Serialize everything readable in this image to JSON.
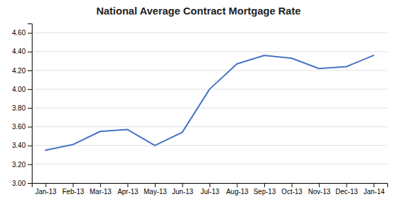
{
  "chart_data": {
    "type": "line",
    "title": "National Average Contract Mortgage Rate",
    "categories": [
      "Jan-13",
      "Feb-13",
      "Mar-13",
      "Apr-13",
      "May-13",
      "Jun-13",
      "Jul-13",
      "Aug-13",
      "Sep-13",
      "Oct-13",
      "Nov-13",
      "Dec-13",
      "Jan-14"
    ],
    "values": [
      3.35,
      3.41,
      3.55,
      3.57,
      3.4,
      3.54,
      4.0,
      4.27,
      4.36,
      4.33,
      4.22,
      4.24,
      4.36
    ],
    "color": "#4472C4",
    "ylim": [
      3.0,
      4.7
    ],
    "yticks": [
      {
        "value": 3.0,
        "label": "3.00"
      },
      {
        "value": 3.2,
        "label": "3.20"
      },
      {
        "value": 3.4,
        "label": "3.40"
      },
      {
        "value": 3.6,
        "label": "3.60"
      },
      {
        "value": 3.8,
        "label": "3.80"
      },
      {
        "value": 4.0,
        "label": "4.00"
      },
      {
        "value": 4.2,
        "label": "4.20"
      },
      {
        "value": 4.4,
        "label": "4.40"
      },
      {
        "value": 4.6,
        "label": "4.60"
      }
    ],
    "grid": true
  }
}
